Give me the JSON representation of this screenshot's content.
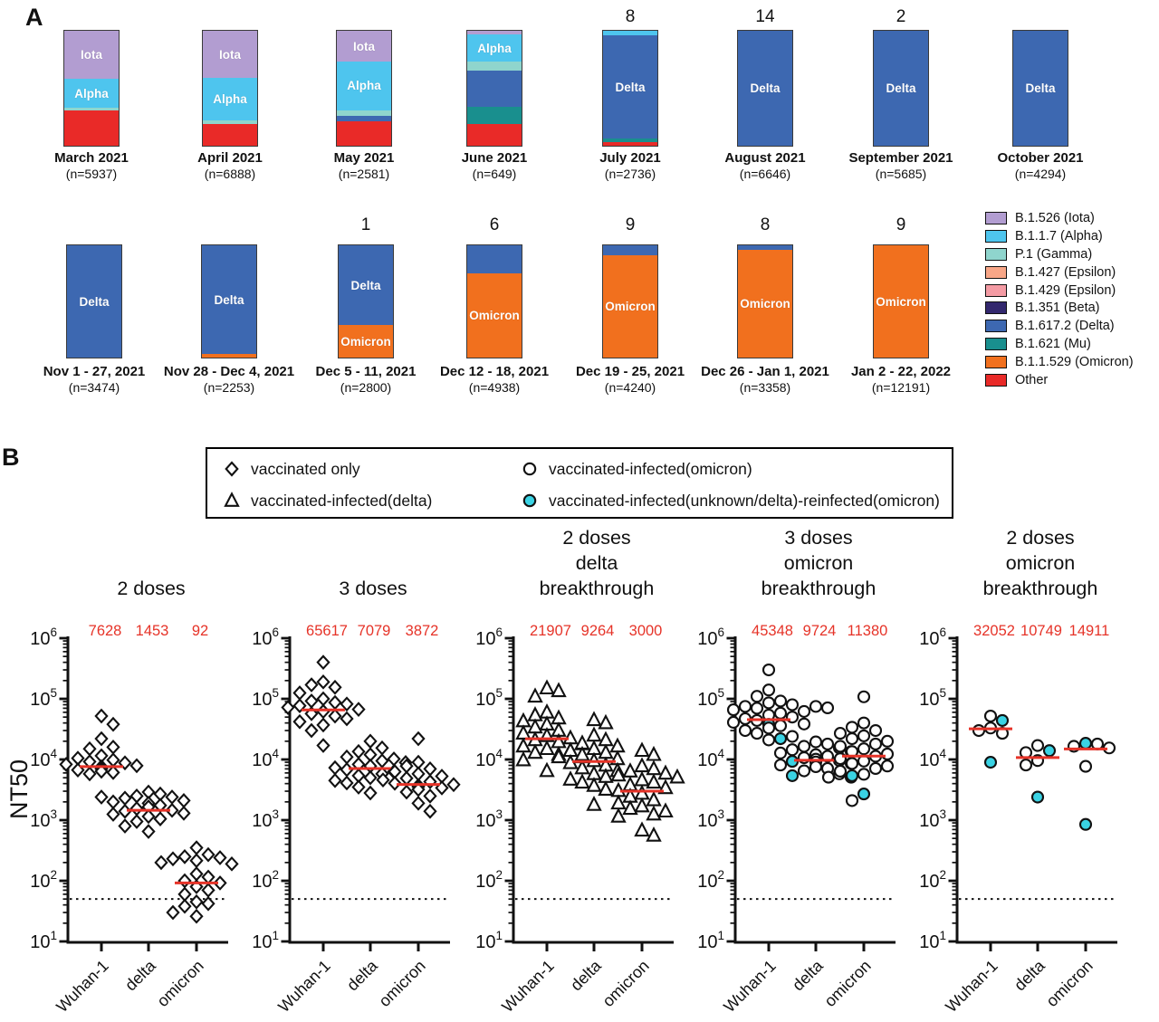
{
  "figure": {
    "panel_a_label": "A",
    "panel_b_label": "B"
  },
  "accent_colors": {
    "mean_red": "#e63328",
    "marker_cyan": "#3ad3e4",
    "marker_stroke": "#111111"
  },
  "chart_data": [
    {
      "type": "bar",
      "panel": "A",
      "title": "SARS-CoV-2 variant distribution over time (stacked percent bars)",
      "colors": {
        "iota": "#b29dd1",
        "alpha": "#4ec5ee",
        "gamma": "#8fd5cd",
        "epsilon427": "#f8a687",
        "epsilon429": "#f49ba4",
        "beta": "#33286e",
        "delta": "#3d68b1",
        "mu": "#198f8e",
        "omicron": "#f1701e",
        "other": "#e92a28"
      },
      "legend": [
        {
          "variant": "iota",
          "label": "B.1.526 (Iota)"
        },
        {
          "variant": "alpha",
          "label": "B.1.1.7 (Alpha)"
        },
        {
          "variant": "gamma",
          "label": "P.1 (Gamma)"
        },
        {
          "variant": "epsilon427",
          "label": "B.1.427 (Epsilon)"
        },
        {
          "variant": "epsilon429",
          "label": "B.1.429 (Epsilon)"
        },
        {
          "variant": "beta",
          "label": "B.1.351 (Beta)"
        },
        {
          "variant": "delta",
          "label": "B.1.617.2 (Delta)"
        },
        {
          "variant": "mu",
          "label": "B.1.621 (Mu)"
        },
        {
          "variant": "omicron",
          "label": "B.1.1.529 (Omicron)"
        },
        {
          "variant": "other",
          "label": "Other"
        }
      ],
      "row1": [
        {
          "title": "March 2021",
          "n_label": "(n=5937)",
          "count_above": "",
          "segments": [
            {
              "variant": "iota",
              "pct": 42,
              "label": "Iota"
            },
            {
              "variant": "alpha",
              "pct": 25,
              "label": "Alpha"
            },
            {
              "variant": "gamma",
              "pct": 2,
              "label": ""
            },
            {
              "variant": "other",
              "pct": 31,
              "label": ""
            }
          ]
        },
        {
          "title": "April 2021",
          "n_label": "(n=6888)",
          "count_above": "",
          "segments": [
            {
              "variant": "iota",
              "pct": 41,
              "label": "Iota"
            },
            {
              "variant": "alpha",
              "pct": 37,
              "label": "Alpha"
            },
            {
              "variant": "gamma",
              "pct": 3,
              "label": ""
            },
            {
              "variant": "other",
              "pct": 19,
              "label": ""
            }
          ]
        },
        {
          "title": "May 2021",
          "n_label": "(n=2581)",
          "count_above": "",
          "segments": [
            {
              "variant": "iota",
              "pct": 27,
              "label": "Iota"
            },
            {
              "variant": "alpha",
              "pct": 42,
              "label": "Alpha"
            },
            {
              "variant": "gamma",
              "pct": 5,
              "label": ""
            },
            {
              "variant": "delta",
              "pct": 5,
              "label": ""
            },
            {
              "variant": "other",
              "pct": 21,
              "label": ""
            }
          ]
        },
        {
          "title": "June 2021",
          "n_label": "(n=649)",
          "count_above": "",
          "segments": [
            {
              "variant": "iota",
              "pct": 3,
              "label": ""
            },
            {
              "variant": "alpha",
              "pct": 24,
              "label": "Alpha"
            },
            {
              "variant": "gamma",
              "pct": 8,
              "label": ""
            },
            {
              "variant": "delta",
              "pct": 31,
              "label": ""
            },
            {
              "variant": "mu",
              "pct": 15,
              "label": ""
            },
            {
              "variant": "other",
              "pct": 19,
              "label": ""
            }
          ]
        },
        {
          "title": "July 2021",
          "n_label": "(n=2736)",
          "count_above": "8",
          "segments": [
            {
              "variant": "alpha",
              "pct": 4,
              "label": ""
            },
            {
              "variant": "delta",
              "pct": 90,
              "label": "Delta"
            },
            {
              "variant": "mu",
              "pct": 3,
              "label": ""
            },
            {
              "variant": "other",
              "pct": 3,
              "label": ""
            }
          ]
        },
        {
          "title": "August 2021",
          "n_label": "(n=6646)",
          "count_above": "14",
          "segments": [
            {
              "variant": "delta",
              "pct": 100,
              "label": "Delta"
            }
          ]
        },
        {
          "title": "September 2021",
          "n_label": "(n=5685)",
          "count_above": "2",
          "segments": [
            {
              "variant": "delta",
              "pct": 100,
              "label": "Delta"
            }
          ]
        },
        {
          "title": "October 2021",
          "n_label": "(n=4294)",
          "count_above": "",
          "segments": [
            {
              "variant": "delta",
              "pct": 100,
              "label": "Delta"
            }
          ]
        }
      ],
      "row2": [
        {
          "title": "Nov 1 - 27, 2021",
          "n_label": "(n=3474)",
          "count_above": "",
          "segments": [
            {
              "variant": "delta",
              "pct": 100,
              "label": "Delta"
            }
          ]
        },
        {
          "title": "Nov 28 - Dec 4, 2021",
          "n_label": "(n=2253)",
          "count_above": "",
          "segments": [
            {
              "variant": "delta",
              "pct": 97,
              "label": "Delta"
            },
            {
              "variant": "omicron",
              "pct": 3,
              "label": ""
            }
          ]
        },
        {
          "title": "Dec 5 - 11, 2021",
          "n_label": "(n=2800)",
          "count_above": "1",
          "segments": [
            {
              "variant": "delta",
              "pct": 71,
              "label": "Delta"
            },
            {
              "variant": "omicron",
              "pct": 29,
              "label": "Omicron"
            }
          ]
        },
        {
          "title": "Dec 12 - 18, 2021",
          "n_label": "(n=4938)",
          "count_above": "6",
          "segments": [
            {
              "variant": "delta",
              "pct": 25,
              "label": ""
            },
            {
              "variant": "omicron",
              "pct": 75,
              "label": "Omicron"
            }
          ]
        },
        {
          "title": "Dec 19 - 25, 2021",
          "n_label": "(n=4240)",
          "count_above": "9",
          "segments": [
            {
              "variant": "delta",
              "pct": 9,
              "label": ""
            },
            {
              "variant": "omicron",
              "pct": 91,
              "label": "Omicron"
            }
          ]
        },
        {
          "title": "Dec 26 - Jan 1, 2021",
          "n_label": "(n=3358)",
          "count_above": "8",
          "segments": [
            {
              "variant": "delta",
              "pct": 4,
              "label": ""
            },
            {
              "variant": "omicron",
              "pct": 96,
              "label": "Omicron"
            }
          ]
        },
        {
          "title": "Jan 2 - 22, 2022",
          "n_label": "(n=12191)",
          "count_above": "9",
          "segments": [
            {
              "variant": "omicron",
              "pct": 100,
              "label": "Omicron"
            }
          ]
        }
      ]
    },
    {
      "type": "scatter",
      "panel": "B",
      "ylabel": "NT50",
      "y_scale": "log10",
      "y_range_exponents": [
        1,
        6
      ],
      "limit_of_detection": 50,
      "categories": [
        "Wuhan-1",
        "delta",
        "omicron"
      ],
      "legend": [
        {
          "marker": "diamond",
          "label": "vaccinated only"
        },
        {
          "marker": "triangle",
          "label": "vaccinated-infected(delta)"
        },
        {
          "marker": "circle",
          "label": "vaccinated-infected(omicron)"
        },
        {
          "marker": "circle-cyan",
          "label": "vaccinated-infected(unknown/delta)-reinfected(omicron)"
        }
      ],
      "subplots": [
        {
          "title_lines": [
            "2 doses"
          ],
          "marker": "diamond",
          "means": [
            7628,
            1453,
            92
          ],
          "groups": [
            {
              "category": "Wuhan-1",
              "open": [
                52000,
                38000,
                22000,
                16000,
                15000,
                11500,
                10500,
                9800,
                9200,
                8800,
                8300,
                7900,
                7600,
                7300,
                7000,
                6700,
                6400,
                6100,
                5800,
                2400
              ],
              "reinfected": []
            },
            {
              "category": "delta",
              "open": [
                2900,
                2700,
                2500,
                2400,
                2300,
                2100,
                2000,
                1900,
                1750,
                1650,
                1550,
                1450,
                1400,
                1300,
                1250,
                1150,
                1050,
                950,
                800,
                650
              ],
              "reinfected": []
            },
            {
              "category": "omicron",
              "open": [
                350,
                270,
                250,
                240,
                230,
                215,
                200,
                190,
                130,
                115,
                100,
                92,
                80,
                70,
                60,
                45,
                42,
                38,
                30,
                26
              ],
              "reinfected": []
            }
          ]
        },
        {
          "title_lines": [
            "3 doses"
          ],
          "marker": "diamond",
          "means": [
            65617,
            7079,
            3872
          ],
          "groups": [
            {
              "category": "Wuhan-1",
              "open": [
                400000,
                190000,
                170000,
                155000,
                125000,
                100000,
                92000,
                87000,
                82000,
                77000,
                72000,
                67000,
                62000,
                57000,
                52000,
                47000,
                42000,
                37000,
                30000,
                17000
              ],
              "reinfected": []
            },
            {
              "category": "delta",
              "open": [
                20000,
                15500,
                13500,
                12000,
                11000,
                10200,
                9500,
                8900,
                8300,
                7800,
                7300,
                6800,
                6300,
                5800,
                5400,
                5000,
                4500,
                4100,
                3500,
                2800
              ],
              "reinfected": []
            },
            {
              "category": "omicron",
              "open": [
                22000,
                9000,
                7800,
                7000,
                6300,
                5800,
                5300,
                4900,
                4600,
                4300,
                4050,
                3850,
                3700,
                3550,
                3400,
                3200,
                2900,
                2500,
                1900,
                1400
              ],
              "reinfected": []
            }
          ]
        },
        {
          "title_lines": [
            "2 doses",
            "delta",
            "breakthrough"
          ],
          "marker": "triangle",
          "means": [
            21907,
            9264,
            3000
          ],
          "groups": [
            {
              "category": "Wuhan-1",
              "open": [
                150000,
                135000,
                110000,
                60000,
                54000,
                48000,
                43000,
                38000,
                34000,
                30000,
                27000,
                24500,
                22500,
                21000,
                19500,
                18000,
                16500,
                15000,
                14000,
                13000,
                12000,
                11000,
                9800,
                6500
              ],
              "reinfected": []
            },
            {
              "category": "delta",
              "open": [
                45000,
                40000,
                25000,
                21000,
                18500,
                16500,
                15000,
                14000,
                13000,
                12000,
                11000,
                10200,
                9500,
                8800,
                8000,
                7200,
                6500,
                5800,
                5200,
                4700,
                4200,
                3700,
                3200,
                1800
              ],
              "reinfected": []
            },
            {
              "category": "omicron",
              "open": [
                14000,
                12000,
                7800,
                7000,
                6400,
                5900,
                5500,
                5100,
                4600,
                4200,
                3800,
                3400,
                3050,
                2750,
                2450,
                2150,
                1900,
                1700,
                1550,
                1400,
                1250,
                1150,
                680,
                560
              ],
              "reinfected": []
            }
          ]
        },
        {
          "title_lines": [
            "3 doses",
            "omicron",
            "breakthrough"
          ],
          "marker": "circle",
          "means": [
            45348,
            9724,
            11380
          ],
          "groups": [
            {
              "category": "Wuhan-1",
              "open": [
                300000,
                140000,
                110000,
                92000,
                86000,
                80000,
                75000,
                70000,
                66000,
                62000,
                58000,
                54000,
                50000,
                47000,
                44000,
                41000,
                38500,
                36000,
                33000,
                30000,
                27000,
                24000,
                21000
              ],
              "reinfected": [
                38000,
                22000
              ]
            },
            {
              "category": "delta",
              "open": [
                75000,
                71000,
                19500,
                18000,
                16500,
                15500,
                14500,
                13500,
                12800,
                12000,
                11300,
                10700,
                10100,
                9600,
                9100,
                8600,
                8100,
                7600,
                7100,
                6500,
                5800,
                5100
              ],
              "reinfected": [
                9300,
                5400
              ]
            },
            {
              "category": "omicron",
              "open": [
                108000,
                40000,
                34000,
                30000,
                27000,
                24500,
                22000,
                20000,
                18000,
                16500,
                15000,
                13500,
                12300,
                11300,
                10300,
                9400,
                8600,
                7800,
                7100,
                6400,
                5700,
                5100,
                2100
              ],
              "reinfected": [
                5400,
                2700
              ]
            }
          ]
        },
        {
          "title_lines": [
            "2 doses",
            "omicron",
            "breakthrough"
          ],
          "marker": "circle",
          "means": [
            32052,
            10749,
            14911
          ],
          "groups": [
            {
              "category": "Wuhan-1",
              "open": [
                52000,
                33000,
                30000,
                27000
              ],
              "reinfected": [
                44000,
                9000
              ]
            },
            {
              "category": "delta",
              "open": [
                17000,
                13000,
                9600,
                8100
              ],
              "reinfected": [
                14000,
                2400
              ]
            },
            {
              "category": "omicron",
              "open": [
                18000,
                16500,
                15500,
                7700
              ],
              "reinfected": [
                18500,
                850
              ]
            }
          ]
        }
      ]
    }
  ]
}
